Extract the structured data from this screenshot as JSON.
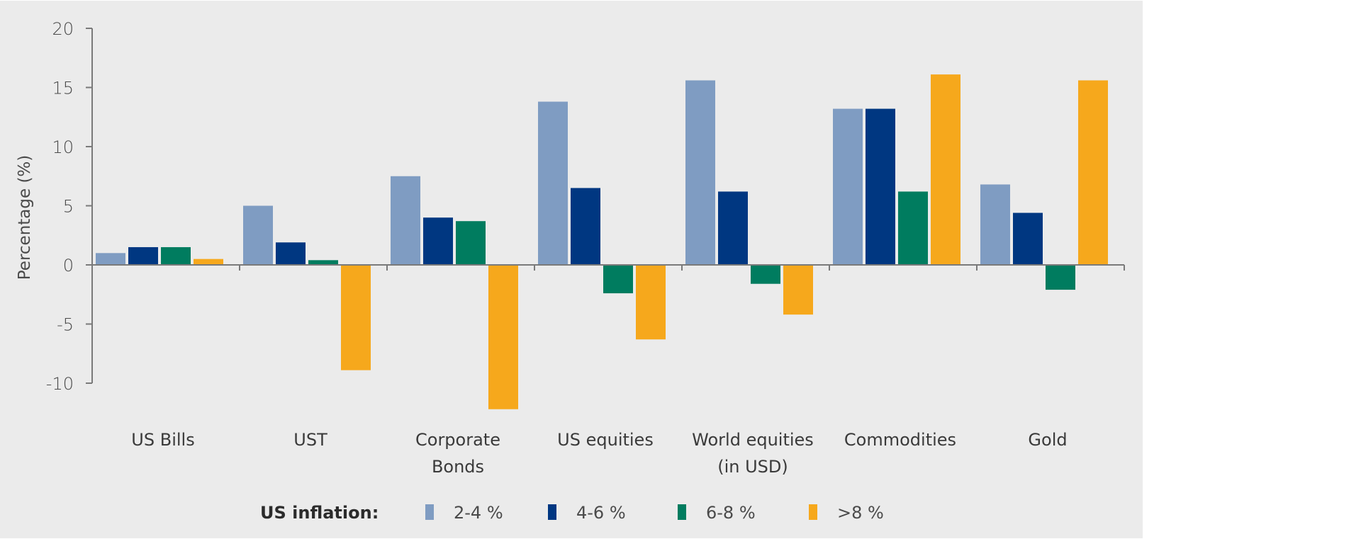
{
  "chart_data": {
    "type": "bar",
    "title": "",
    "xlabel": "",
    "ylabel": "Percentage (%)",
    "ylim": [
      -10,
      20
    ],
    "yticks": [
      "20",
      "15",
      "10",
      "5",
      "0",
      "-5",
      "-10"
    ],
    "ytick_values": [
      20,
      15,
      10,
      5,
      0,
      -5,
      -10
    ],
    "grid": false,
    "categories": [
      [
        "US Bills"
      ],
      [
        "UST"
      ],
      [
        "Corporate",
        "Bonds"
      ],
      [
        "US equities"
      ],
      [
        "World equities",
        "(in USD)"
      ],
      [
        "Commodities"
      ],
      [
        "Gold"
      ]
    ],
    "legend": {
      "title": "US inflation:",
      "placement": "bottom"
    },
    "series": [
      {
        "name": "2-4 %",
        "color": "#7f9cc2",
        "values": [
          1.0,
          5.0,
          7.5,
          13.8,
          15.6,
          13.2,
          6.8
        ]
      },
      {
        "name": "4-6 %",
        "color": "#003781",
        "values": [
          1.5,
          1.9,
          4.0,
          6.5,
          6.2,
          13.2,
          4.4
        ]
      },
      {
        "name": "6-8 %",
        "color": "#007c5f",
        "values": [
          1.5,
          0.4,
          3.7,
          -2.4,
          -1.6,
          6.2,
          -2.1
        ]
      },
      {
        "name": ">8 %",
        "color": "#f6a81c",
        "values": [
          0.5,
          -8.9,
          -12.2,
          -6.3,
          -4.2,
          16.1,
          15.6
        ]
      }
    ]
  }
}
